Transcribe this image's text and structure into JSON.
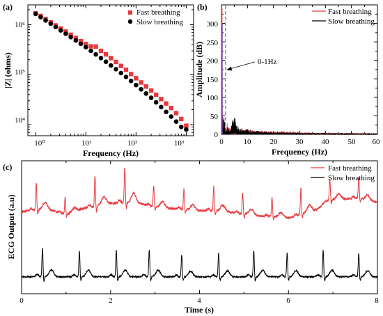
{
  "panels": {
    "a": {
      "label": "(a)",
      "xlabel": "Frequency (Hz)",
      "ylabel": "|Z| (ohms)",
      "x_tick_labels": [
        "10⁰",
        "10¹",
        "10²",
        "10³"
      ],
      "y_tick_labels": [
        "10⁴",
        "10⁵",
        "10⁶"
      ],
      "legend": [
        "Fast breathing",
        "Slow breathing"
      ]
    },
    "b": {
      "label": "(b)",
      "xlabel": "Frequency (Hz)",
      "ylabel": "Amplitude (dB)",
      "x_tick_labels": [
        "0",
        "10",
        "20",
        "30",
        "40",
        "50",
        "60"
      ],
      "y_tick_labels": [
        "0",
        "50",
        "100",
        "150",
        "200",
        "250",
        "300"
      ],
      "legend": [
        "Fast breathing",
        "Slow breathing"
      ],
      "annotation": "0-1Hz"
    },
    "c": {
      "label": "(c)",
      "xlabel": "Time (s)",
      "ylabel": "ECG Output (a.u)",
      "x_tick_labels": [
        "0",
        "2",
        "4",
        "6",
        "8"
      ],
      "legend": [
        "Fast breathing",
        "Slow breathing"
      ]
    }
  },
  "colors": {
    "fast": "#e8383d",
    "slow": "#000000",
    "dashed": "#5a5ad8",
    "axis": "#000000"
  },
  "chart_data": [
    {
      "type": "scatter",
      "panel": "a",
      "x_scale": "log",
      "y_scale": "log",
      "xlim": [
        0.7,
        1400
      ],
      "ylim": [
        6000,
        2500000
      ],
      "series": [
        {
          "name": "Fast breathing",
          "marker": "square",
          "color": "#e8383d",
          "x": [
            1,
            1.26,
            1.58,
            2,
            2.51,
            3.16,
            3.98,
            5.01,
            6.31,
            7.94,
            10,
            12.6,
            15.8,
            20,
            25.1,
            31.6,
            39.8,
            50.1,
            63.1,
            79.4,
            100,
            126,
            158,
            200,
            251,
            316,
            398,
            501,
            631,
            794,
            1000
          ],
          "y": [
            1700000,
            1500000,
            1300000,
            1120000,
            970000,
            840000,
            730000,
            630000,
            545000,
            470000,
            410000,
            370000,
            365000,
            300000,
            255000,
            215000,
            180000,
            150000,
            125000,
            103000,
            85000,
            70000,
            58000,
            48000,
            39500,
            32500,
            26500,
            21500,
            17000,
            13000,
            9500
          ]
        },
        {
          "name": "Slow breathing",
          "marker": "circle",
          "color": "#000000",
          "x": [
            1,
            1.26,
            1.58,
            2,
            2.51,
            3.16,
            3.98,
            5.01,
            6.31,
            7.94,
            10,
            12.6,
            15.8,
            20,
            25.1,
            31.6,
            39.8,
            50.1,
            63.1,
            79.4,
            100,
            126,
            158,
            200,
            251,
            316,
            398,
            501,
            631,
            794,
            1000
          ],
          "y": [
            1650000,
            1420000,
            1220000,
            1050000,
            900000,
            770000,
            660000,
            565000,
            485000,
            415000,
            355000,
            300000,
            255000,
            215000,
            182000,
            153000,
            129000,
            108000,
            90000,
            75000,
            62000,
            51000,
            42000,
            34500,
            28000,
            22500,
            18000,
            14500,
            11500,
            9000,
            8000
          ]
        }
      ]
    },
    {
      "type": "line",
      "panel": "b",
      "xlim": [
        0,
        60
      ],
      "ylim": [
        0,
        350
      ],
      "dashed_vline_x": 1,
      "series": [
        {
          "name": "Fast breathing",
          "color": "#e8383d",
          "x": [
            0,
            0.3,
            0.6,
            1,
            1.5,
            2,
            2.5,
            3,
            3.5,
            4,
            4.5,
            5,
            6,
            7,
            8,
            9,
            10,
            12,
            14,
            16,
            18,
            20,
            25,
            30,
            35,
            40,
            45,
            50,
            55,
            60
          ],
          "y": [
            340,
            120,
            60,
            75,
            30,
            18,
            40,
            22,
            15,
            30,
            12,
            25,
            20,
            15,
            18,
            12,
            14,
            12,
            10,
            12,
            9,
            10,
            8,
            7,
            5,
            5,
            4,
            4,
            3,
            3
          ]
        },
        {
          "name": "Slow breathing",
          "color": "#000000",
          "x": [
            0,
            0.3,
            0.6,
            1,
            1.5,
            2,
            2.5,
            3,
            3.5,
            4,
            4.5,
            5,
            6,
            7,
            8,
            9,
            10,
            12,
            14,
            16,
            18,
            20,
            25,
            30,
            35,
            40,
            45,
            50,
            55,
            60
          ],
          "y": [
            300,
            90,
            40,
            50,
            20,
            12,
            25,
            15,
            10,
            45,
            35,
            55,
            25,
            18,
            14,
            12,
            15,
            10,
            11,
            8,
            9,
            7,
            6,
            5,
            4,
            4,
            3,
            3,
            2,
            2
          ]
        }
      ]
    },
    {
      "type": "line",
      "panel": "c",
      "xlim": [
        0,
        8
      ],
      "series": [
        {
          "name": "Fast breathing",
          "color": "#e8383d",
          "baseline_t": [
            0,
            0.5,
            1,
            1.5,
            2,
            2.5,
            3,
            3.5,
            4,
            4.5,
            5,
            5.5,
            6,
            6.5,
            7,
            7.5,
            8
          ],
          "baseline_v": [
            0.55,
            0.6,
            0.5,
            0.63,
            0.72,
            0.74,
            0.65,
            0.6,
            0.57,
            0.56,
            0.5,
            0.45,
            0.42,
            0.55,
            0.8,
            0.82,
            0.75
          ],
          "beats_t": [
            0.33,
            0.98,
            1.65,
            2.32,
            2.97,
            3.65,
            4.32,
            4.97,
            5.63,
            6.28,
            6.93,
            7.58
          ],
          "beat_amp": [
            0.55,
            0.35,
            0.65,
            0.75,
            0.45,
            0.45,
            0.5,
            0.45,
            0.4,
            0.55,
            0.45,
            0.45
          ]
        },
        {
          "name": "Slow breathing",
          "color": "#000000",
          "baseline_v": -0.8,
          "beats_t": [
            0.47,
            1.3,
            2.13,
            2.87,
            3.6,
            4.43,
            5.22,
            5.97,
            6.78,
            7.58
          ],
          "beat_amp": [
            0.6,
            0.55,
            0.55,
            0.55,
            0.45,
            0.5,
            0.55,
            0.5,
            0.55,
            0.5
          ]
        }
      ]
    }
  ]
}
